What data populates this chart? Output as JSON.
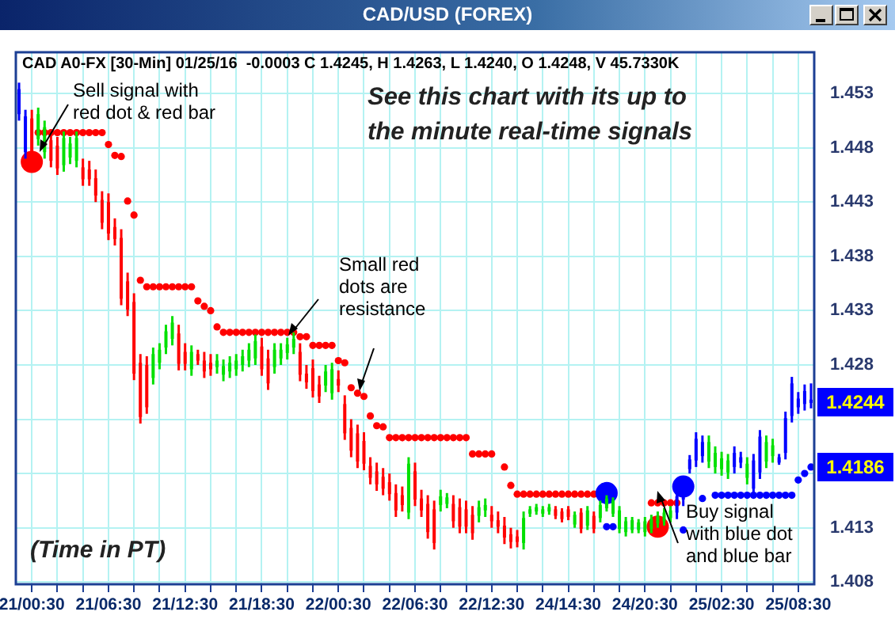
{
  "chart_data": {
    "type": "candlestick",
    "title": "CAD/USD (FOREX)",
    "categories": [
      null,
      null,
      "21/00:30",
      null,
      null,
      null,
      null,
      null,
      null,
      null,
      null,
      null,
      null,
      null,
      "21/06:30",
      null,
      null,
      null,
      null,
      null,
      null,
      null,
      null,
      null,
      null,
      null,
      "21/12:30",
      null,
      null,
      null,
      null,
      null,
      null,
      null,
      null,
      null,
      null,
      null,
      "21/18:30",
      null,
      null,
      null,
      null,
      null,
      null,
      null,
      null,
      null,
      null,
      null,
      "22/00:30",
      null,
      null,
      null,
      null,
      null,
      null,
      null,
      null,
      null,
      null,
      null,
      "22/06:30",
      null,
      null,
      null,
      null,
      null,
      null,
      null,
      null,
      null,
      null,
      null,
      "22/12:30",
      null,
      null,
      null,
      null,
      null,
      null,
      null,
      null,
      null,
      null,
      null,
      "24/14:30",
      null,
      null,
      null,
      null,
      null,
      null,
      null,
      null,
      null,
      null,
      null,
      "24/20:30",
      null,
      null,
      null,
      null,
      null,
      null,
      null,
      null,
      null,
      null,
      null,
      "25/02:30",
      null,
      null,
      null,
      null,
      null,
      null,
      null,
      null,
      null,
      null,
      null,
      "25/08:30",
      null,
      null
    ],
    "ohlc": [
      [
        1.4511,
        1.454,
        1.4505,
        1.4534
      ],
      [
        1.4476,
        1.4515,
        1.447,
        1.4509
      ],
      [
        1.4507,
        1.4515,
        1.447,
        1.4476
      ],
      [
        1.4488,
        1.4517,
        1.4482,
        1.4511
      ],
      [
        1.4476,
        1.4505,
        1.447,
        1.4499
      ],
      [
        1.4487,
        1.4495,
        1.4462,
        1.4468
      ],
      [
        1.4482,
        1.449,
        1.4455,
        1.4461
      ],
      [
        1.4464,
        1.4495,
        1.4458,
        1.4489
      ],
      [
        1.4471,
        1.449,
        1.4465,
        1.4484
      ],
      [
        1.4468,
        1.4495,
        1.4462,
        1.4489
      ],
      [
        1.4462,
        1.447,
        1.4445,
        1.4451
      ],
      [
        1.446,
        1.4468,
        1.4445,
        1.4451
      ],
      [
        1.4452,
        1.446,
        1.443,
        1.4436
      ],
      [
        1.4432,
        1.444,
        1.4405,
        1.4411
      ],
      [
        1.443,
        1.4438,
        1.4395,
        1.4401
      ],
      [
        1.4407,
        1.4415,
        1.439,
        1.4396
      ],
      [
        1.4397,
        1.4405,
        1.4335,
        1.4341
      ],
      [
        1.4357,
        1.4365,
        1.4325,
        1.4331
      ],
      [
        1.4338,
        1.4346,
        1.4266,
        1.4272
      ],
      [
        1.4282,
        1.429,
        1.4226,
        1.4232
      ],
      [
        1.428,
        1.4288,
        1.4235,
        1.4241
      ],
      [
        1.4268,
        1.4296,
        1.4262,
        1.429
      ],
      [
        1.4282,
        1.43,
        1.4276,
        1.4294
      ],
      [
        1.4296,
        1.4317,
        1.429,
        1.4311
      ],
      [
        1.4304,
        1.4325,
        1.4298,
        1.4319
      ],
      [
        1.4309,
        1.4317,
        1.4275,
        1.4281
      ],
      [
        1.4292,
        1.43,
        1.4275,
        1.4281
      ],
      [
        1.4276,
        1.4298,
        1.427,
        1.4292
      ],
      [
        1.429,
        1.4294,
        1.428,
        1.4284
      ],
      [
        1.4284,
        1.4292,
        1.4268,
        1.4274
      ],
      [
        1.4282,
        1.429,
        1.427,
        1.4276
      ],
      [
        1.4278,
        1.429,
        1.4272,
        1.4284
      ],
      [
        1.4271,
        1.4285,
        1.4265,
        1.4279
      ],
      [
        1.4274,
        1.4288,
        1.4268,
        1.4282
      ],
      [
        1.4276,
        1.429,
        1.427,
        1.4284
      ],
      [
        1.428,
        1.4294,
        1.4274,
        1.4288
      ],
      [
        1.4284,
        1.43,
        1.4278,
        1.4294
      ],
      [
        1.4286,
        1.4308,
        1.428,
        1.4302
      ],
      [
        1.4297,
        1.4305,
        1.427,
        1.4276
      ],
      [
        1.4286,
        1.4294,
        1.4257,
        1.4263
      ],
      [
        1.4278,
        1.43,
        1.4272,
        1.4294
      ],
      [
        1.4286,
        1.43,
        1.428,
        1.4294
      ],
      [
        1.4291,
        1.4305,
        1.4285,
        1.4299
      ],
      [
        1.4296,
        1.431,
        1.429,
        1.4304
      ],
      [
        1.4292,
        1.43,
        1.4265,
        1.4271
      ],
      [
        1.4272,
        1.428,
        1.4258,
        1.4264
      ],
      [
        1.4277,
        1.4285,
        1.425,
        1.4256
      ],
      [
        1.4262,
        1.427,
        1.4245,
        1.4251
      ],
      [
        1.4261,
        1.428,
        1.4255,
        1.4274
      ],
      [
        1.4254,
        1.4282,
        1.4248,
        1.4276
      ],
      [
        1.4267,
        1.4275,
        1.4255,
        1.4261
      ],
      [
        1.4244,
        1.4252,
        1.4211,
        1.4217
      ],
      [
        1.4222,
        1.423,
        1.4195,
        1.4201
      ],
      [
        1.4217,
        1.4225,
        1.4185,
        1.4191
      ],
      [
        1.421,
        1.4218,
        1.4183,
        1.4189
      ],
      [
        1.4187,
        1.4195,
        1.417,
        1.4176
      ],
      [
        1.4182,
        1.419,
        1.4164,
        1.417
      ],
      [
        1.4177,
        1.4185,
        1.416,
        1.4166
      ],
      [
        1.4172,
        1.418,
        1.4155,
        1.4161
      ],
      [
        1.4162,
        1.417,
        1.414,
        1.4146
      ],
      [
        1.416,
        1.4168,
        1.4145,
        1.4151
      ],
      [
        1.4144,
        1.4195,
        1.4138,
        1.4189
      ],
      [
        1.4182,
        1.419,
        1.415,
        1.4156
      ],
      [
        1.4157,
        1.4165,
        1.414,
        1.4146
      ],
      [
        1.4152,
        1.416,
        1.412,
        1.4126
      ],
      [
        1.4147,
        1.4155,
        1.411,
        1.4116
      ],
      [
        1.4151,
        1.4165,
        1.4145,
        1.4159
      ],
      [
        1.4152,
        1.4162,
        1.4148,
        1.4158
      ],
      [
        1.4152,
        1.416,
        1.413,
        1.4136
      ],
      [
        1.4149,
        1.4157,
        1.4125,
        1.4131
      ],
      [
        1.4147,
        1.4155,
        1.4125,
        1.4131
      ],
      [
        1.4142,
        1.415,
        1.4119,
        1.4125
      ],
      [
        1.4141,
        1.4155,
        1.4135,
        1.4149
      ],
      [
        1.4146,
        1.4157,
        1.414,
        1.4151
      ],
      [
        1.4142,
        1.415,
        1.413,
        1.4136
      ],
      [
        1.4137,
        1.4145,
        1.4125,
        1.4131
      ],
      [
        1.4132,
        1.414,
        1.4115,
        1.4121
      ],
      [
        1.4124,
        1.413,
        1.4111,
        1.4117
      ],
      [
        1.4122,
        1.4128,
        1.4112,
        1.4117
      ],
      [
        1.4116,
        1.4145,
        1.411,
        1.4139
      ],
      [
        1.4143,
        1.415,
        1.414,
        1.4147
      ],
      [
        1.4145,
        1.4152,
        1.4142,
        1.4149
      ],
      [
        1.4143,
        1.415,
        1.414,
        1.4147
      ],
      [
        1.4145,
        1.4152,
        1.4142,
        1.4149
      ],
      [
        1.4147,
        1.415,
        1.4138,
        1.4141
      ],
      [
        1.4145,
        1.4148,
        1.4135,
        1.4138
      ],
      [
        1.4147,
        1.415,
        1.4137,
        1.414
      ],
      [
        1.4133,
        1.4145,
        1.413,
        1.4142
      ],
      [
        1.4144,
        1.4148,
        1.4125,
        1.4129
      ],
      [
        1.4132,
        1.415,
        1.4128,
        1.4146
      ],
      [
        1.4141,
        1.4145,
        1.4125,
        1.4129
      ],
      [
        1.4139,
        1.4155,
        1.4135,
        1.4151
      ],
      [
        1.4148,
        1.416,
        1.4145,
        1.4157
      ],
      [
        1.4143,
        1.4158,
        1.414,
        1.4155
      ],
      [
        1.4129,
        1.415,
        1.4125,
        1.4146
      ],
      [
        1.4126,
        1.414,
        1.4122,
        1.4136
      ],
      [
        1.4128,
        1.414,
        1.4125,
        1.4137
      ],
      [
        1.4128,
        1.4138,
        1.4125,
        1.4135
      ],
      [
        1.4126,
        1.414,
        1.4122,
        1.4136
      ],
      [
        1.4129,
        1.4142,
        1.4125,
        1.4138
      ],
      [
        1.4134,
        1.4145,
        1.413,
        1.4141
      ],
      [
        1.4136,
        1.4148,
        1.4132,
        1.4144
      ],
      [
        1.4139,
        1.415,
        1.4135,
        1.4146
      ],
      [
        1.4144,
        1.4165,
        1.4138,
        1.4159
      ],
      [
        1.4156,
        1.417,
        1.415,
        1.4164
      ],
      [
        1.4184,
        1.4197,
        1.418,
        1.4193
      ],
      [
        1.4192,
        1.4218,
        1.4186,
        1.4212
      ],
      [
        1.4196,
        1.4215,
        1.419,
        1.4209
      ],
      [
        1.4191,
        1.4215,
        1.4185,
        1.4209
      ],
      [
        1.4186,
        1.4205,
        1.418,
        1.4199
      ],
      [
        1.4184,
        1.42,
        1.4178,
        1.4194
      ],
      [
        1.4181,
        1.4198,
        1.4175,
        1.4192
      ],
      [
        1.4186,
        1.4205,
        1.418,
        1.4199
      ],
      [
        1.419,
        1.42,
        1.4185,
        1.4195
      ],
      [
        1.4176,
        1.4195,
        1.417,
        1.4189
      ],
      [
        1.4166,
        1.4198,
        1.416,
        1.4192
      ],
      [
        1.4181,
        1.422,
        1.4175,
        1.4214
      ],
      [
        1.4191,
        1.4215,
        1.4185,
        1.4209
      ],
      [
        1.4196,
        1.4212,
        1.419,
        1.4206
      ],
      [
        1.419,
        1.4198,
        1.4188,
        1.4195
      ],
      [
        1.4199,
        1.4237,
        1.4193,
        1.4231
      ],
      [
        1.4233,
        1.4269,
        1.4227,
        1.4263
      ],
      [
        1.4241,
        1.4255,
        1.4235,
        1.4249
      ],
      [
        1.4244,
        1.4262,
        1.4238,
        1.4256
      ],
      [
        1.4248,
        1.4263,
        1.424,
        1.4245
      ]
    ],
    "colors": [
      "#0000ff",
      "#0000ff",
      "#ff0000",
      "#00e000",
      "#00e000",
      "#ff0000",
      "#ff0000",
      "#00e000",
      "#00e000",
      "#00e000",
      "#ff0000",
      "#ff0000",
      "#ff0000",
      "#ff0000",
      "#ff0000",
      "#ff0000",
      "#ff0000",
      "#ff0000",
      "#ff0000",
      "#ff0000",
      "#ff0000",
      "#00e000",
      "#00e000",
      "#00e000",
      "#00e000",
      "#ff0000",
      "#ff0000",
      "#00e000",
      "#ff0000",
      "#ff0000",
      "#ff0000",
      "#00e000",
      "#00e000",
      "#00e000",
      "#00e000",
      "#00e000",
      "#00e000",
      "#00e000",
      "#ff0000",
      "#ff0000",
      "#00e000",
      "#00e000",
      "#00e000",
      "#00e000",
      "#ff0000",
      "#ff0000",
      "#ff0000",
      "#ff0000",
      "#00e000",
      "#00e000",
      "#ff0000",
      "#ff0000",
      "#ff0000",
      "#ff0000",
      "#ff0000",
      "#ff0000",
      "#ff0000",
      "#ff0000",
      "#ff0000",
      "#ff0000",
      "#ff0000",
      "#00e000",
      "#ff0000",
      "#ff0000",
      "#ff0000",
      "#ff0000",
      "#00e000",
      "#00e000",
      "#ff0000",
      "#ff0000",
      "#ff0000",
      "#ff0000",
      "#00e000",
      "#00e000",
      "#ff0000",
      "#ff0000",
      "#ff0000",
      "#ff0000",
      "#ff0000",
      "#00e000",
      "#00e000",
      "#00e000",
      "#00e000",
      "#00e000",
      "#ff0000",
      "#ff0000",
      "#ff0000",
      "#00e000",
      "#ff0000",
      "#00e000",
      "#ff0000",
      "#00e000",
      "#00e000",
      "#00e000",
      "#00e000",
      "#00e000",
      "#00e000",
      "#00e000",
      "#00e000",
      "#00e000",
      "#00e000",
      "#00e000",
      "#00e000",
      "#0000ff",
      "#0000ff",
      "#0000ff",
      "#0000ff",
      "#0000ff",
      "#00e000",
      "#00e000",
      "#00e000",
      "#00e000",
      "#0000ff",
      "#0000ff",
      "#00e000",
      "#0000ff",
      "#0000ff",
      "#00e000",
      "#00e000",
      "#0000ff",
      "#0000ff",
      "#0000ff",
      "#0000ff",
      "#0000ff",
      "#0000ff"
    ],
    "series": [
      {
        "type": "scatter",
        "marker": "circle",
        "color": "#ff0000",
        "values": [
          null,
          null,
          null,
          1.4494,
          1.4494,
          1.4494,
          1.4494,
          1.4494,
          1.4494,
          1.4494,
          1.4494,
          1.4494,
          1.4494,
          1.4494,
          1.4483,
          1.4473,
          1.4472,
          1.4431,
          1.4418,
          1.4358,
          1.4352,
          1.4352,
          1.4352,
          1.4352,
          1.4352,
          1.4352,
          1.4352,
          1.4352,
          1.4339,
          1.4334,
          1.433,
          1.4315,
          1.431,
          1.431,
          1.431,
          1.431,
          1.431,
          1.431,
          1.431,
          1.431,
          1.431,
          1.431,
          1.431,
          1.431,
          1.4306,
          1.4306,
          1.4298,
          1.4298,
          1.4298,
          1.4298,
          1.4284,
          1.4282,
          1.4259,
          1.4254,
          1.4251,
          1.4233,
          1.4224,
          1.4223,
          1.4213,
          1.4213,
          1.4213,
          1.4213,
          1.4213,
          1.4213,
          1.4213,
          1.4213,
          1.4213,
          1.4213,
          1.4213,
          1.4213,
          1.4213,
          1.4198,
          1.4198,
          1.4198,
          1.4198,
          null,
          1.4186,
          1.4169,
          1.4161,
          1.4161,
          1.4161,
          1.4161,
          1.4161,
          1.4161,
          1.4161,
          1.4161,
          1.4161,
          1.4161,
          1.4161,
          1.4161,
          1.4161,
          null,
          null,
          null,
          null,
          null,
          null,
          null,
          null,
          1.4153,
          1.4153,
          1.4153,
          1.4153,
          1.4153,
          null,
          null,
          null,
          null,
          null,
          null,
          null,
          null,
          null,
          null,
          null,
          null,
          null,
          null,
          null,
          null,
          null,
          null,
          null,
          null,
          null
        ]
      },
      {
        "type": "scatter",
        "marker": "circle",
        "color": "#0000ff",
        "values": [
          null,
          null,
          null,
          null,
          null,
          null,
          null,
          null,
          null,
          null,
          null,
          null,
          null,
          null,
          null,
          null,
          null,
          null,
          null,
          null,
          null,
          null,
          null,
          null,
          null,
          null,
          null,
          null,
          null,
          null,
          null,
          null,
          null,
          null,
          null,
          null,
          null,
          null,
          null,
          null,
          null,
          null,
          null,
          null,
          null,
          null,
          null,
          null,
          null,
          null,
          null,
          null,
          null,
          null,
          null,
          null,
          null,
          null,
          null,
          null,
          null,
          null,
          null,
          null,
          null,
          null,
          null,
          null,
          null,
          null,
          null,
          null,
          null,
          null,
          null,
          null,
          null,
          null,
          null,
          null,
          null,
          null,
          null,
          null,
          null,
          null,
          null,
          null,
          null,
          null,
          null,
          null,
          1.4131,
          1.4131,
          null,
          null,
          null,
          null,
          null,
          null,
          null,
          null,
          null,
          null,
          1.4128,
          null,
          null,
          1.4157,
          null,
          1.416,
          1.416,
          1.416,
          1.416,
          1.416,
          1.416,
          1.416,
          1.416,
          1.416,
          1.416,
          1.416,
          1.416,
          1.416,
          1.4174,
          1.418,
          1.4186
        ]
      },
      {
        "type": "bubble",
        "marker": "circle",
        "color": "#ff0000",
        "values": [
          null,
          null,
          1.4467,
          null,
          null,
          null,
          null,
          null,
          null,
          null,
          null,
          null,
          null,
          null,
          null,
          null,
          null,
          null,
          null,
          null,
          null,
          null,
          null,
          null,
          null,
          null,
          null,
          null,
          null,
          null,
          null,
          null,
          null,
          null,
          null,
          null,
          null,
          null,
          null,
          null,
          null,
          null,
          null,
          null,
          null,
          null,
          null,
          null,
          null,
          null,
          null,
          null,
          null,
          null,
          null,
          null,
          null,
          null,
          null,
          null,
          null,
          null,
          null,
          null,
          null,
          null,
          null,
          null,
          null,
          null,
          null,
          null,
          null,
          null,
          null,
          null,
          null,
          null,
          null,
          null,
          null,
          null,
          null,
          null,
          null,
          null,
          null,
          null,
          null,
          null,
          null,
          null,
          null,
          null,
          null,
          null,
          null,
          null,
          null,
          null,
          1.4131,
          null,
          null,
          null,
          null,
          null,
          null,
          null,
          null,
          null,
          null,
          null,
          null,
          null,
          null,
          null,
          null,
          null,
          null,
          null,
          null,
          null,
          null,
          null,
          null
        ],
        "sizes": [
          null,
          null,
          1,
          null,
          null,
          null,
          null,
          null,
          null,
          null,
          null,
          null,
          null,
          null,
          null,
          null,
          null,
          null,
          null,
          null,
          null,
          null,
          null,
          null,
          null,
          null,
          null,
          null,
          null,
          null,
          null,
          null,
          null,
          null,
          null,
          null,
          null,
          null,
          null,
          null,
          null,
          null,
          null,
          null,
          null,
          null,
          null,
          null,
          null,
          null,
          null,
          null,
          null,
          null,
          null,
          null,
          null,
          null,
          null,
          null,
          null,
          null,
          null,
          null,
          null,
          null,
          null,
          null,
          null,
          null,
          null,
          null,
          null,
          null,
          null,
          null,
          null,
          null,
          null,
          null,
          null,
          null,
          null,
          null,
          null,
          null,
          null,
          null,
          null,
          null,
          null,
          null,
          null,
          null,
          null,
          null,
          null,
          null,
          null,
          null,
          1,
          null,
          null,
          null,
          null,
          null,
          null,
          null,
          null,
          null,
          null,
          null,
          null,
          null,
          null,
          null,
          null,
          null,
          null,
          null,
          null,
          null,
          null,
          null,
          null
        ]
      },
      {
        "type": "bubble",
        "marker": "circle",
        "color": "#0000ff",
        "values": [
          null,
          null,
          null,
          null,
          null,
          null,
          null,
          null,
          null,
          null,
          null,
          null,
          null,
          null,
          null,
          null,
          null,
          null,
          null,
          null,
          null,
          null,
          null,
          null,
          null,
          null,
          null,
          null,
          null,
          null,
          null,
          null,
          null,
          null,
          null,
          null,
          null,
          null,
          null,
          null,
          null,
          null,
          null,
          null,
          null,
          null,
          null,
          null,
          null,
          null,
          null,
          null,
          null,
          null,
          null,
          null,
          null,
          null,
          null,
          null,
          null,
          null,
          null,
          null,
          null,
          null,
          null,
          null,
          null,
          null,
          null,
          null,
          null,
          null,
          null,
          null,
          null,
          null,
          null,
          null,
          null,
          null,
          null,
          null,
          null,
          null,
          null,
          null,
          null,
          null,
          null,
          null,
          1.4162,
          null,
          null,
          null,
          null,
          null,
          null,
          null,
          null,
          null,
          null,
          null,
          1.4168,
          null,
          null,
          null,
          null,
          null,
          null,
          null,
          null,
          null,
          null,
          null,
          null,
          null,
          null,
          null,
          null,
          null,
          null,
          null,
          null
        ],
        "sizes": [
          null,
          null,
          null,
          null,
          null,
          null,
          null,
          null,
          null,
          null,
          null,
          null,
          null,
          null,
          null,
          null,
          null,
          null,
          null,
          null,
          null,
          null,
          null,
          null,
          null,
          null,
          null,
          null,
          null,
          null,
          null,
          null,
          null,
          null,
          null,
          null,
          null,
          null,
          null,
          null,
          null,
          null,
          null,
          null,
          null,
          null,
          null,
          null,
          null,
          null,
          null,
          null,
          null,
          null,
          null,
          null,
          null,
          null,
          null,
          null,
          null,
          null,
          null,
          null,
          null,
          null,
          null,
          null,
          null,
          null,
          null,
          null,
          null,
          null,
          null,
          null,
          null,
          null,
          null,
          null,
          null,
          null,
          null,
          null,
          null,
          null,
          null,
          null,
          null,
          null,
          null,
          null,
          1,
          null,
          null,
          null,
          null,
          null,
          null,
          null,
          null,
          null,
          null,
          null,
          1,
          null,
          null,
          null,
          null,
          null,
          null,
          null,
          null,
          null,
          null,
          null,
          null,
          null,
          null,
          null,
          null,
          null,
          null,
          null,
          null
        ]
      }
    ],
    "ylim": [
      1.4078,
      1.4568
    ],
    "yticks": [
      1.408,
      1.413,
      {
        "value": 1.418,
        "label": null
      },
      {
        "value": 1.423,
        "label": null
      },
      1.428,
      1.433,
      1.438,
      1.443,
      1.448,
      1.453
    ],
    "grid": true,
    "annotations": [
      "1.4244",
      "1.4186",
      "CAD A0-FX [30-Min] 01/25/16  -0.0003 C 1.4245, H 1.4263, L 1.4240, O 1.4248, V 45.7330K",
      "Sell signal with\nred dot & red bar",
      "See this chart with its up to\nthe minute real-time signals",
      "Small red\ndots are\nresistance",
      "Buy signal\nwith blue dot\nand blue bar",
      "(Time in PT)"
    ]
  }
}
